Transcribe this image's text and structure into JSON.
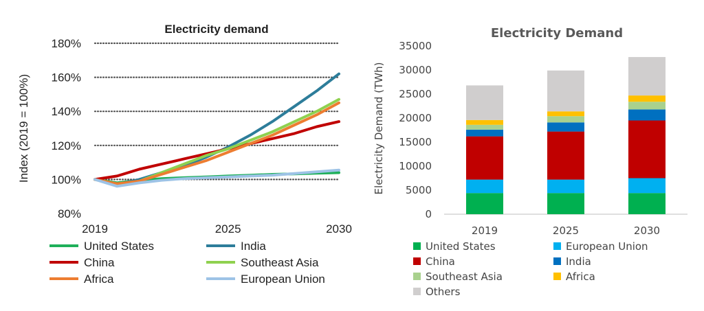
{
  "chart_data": [
    {
      "type": "line",
      "title": "Electricity demand",
      "xlabel": "",
      "ylabel": "Index (2019 = 100%)",
      "x": [
        2019,
        2020,
        2021,
        2022,
        2023,
        2024,
        2025,
        2026,
        2027,
        2028,
        2029,
        2030
      ],
      "x_ticks": [
        "2019",
        "2025",
        "2030"
      ],
      "y_ticks": [
        "80%",
        "100%",
        "120%",
        "140%",
        "160%",
        "180%"
      ],
      "ylim": [
        80,
        180
      ],
      "grid": "horizontal dotted",
      "legend": "bottom",
      "series": [
        {
          "name": "United States",
          "color": "#1fb05a",
          "values": [
            100,
            98,
            99.5,
            100.5,
            101,
            101.5,
            102,
            102.5,
            103,
            103.3,
            103.7,
            104
          ]
        },
        {
          "name": "India",
          "color": "#2d7d9a",
          "values": [
            100,
            97,
            100,
            104,
            108,
            113,
            119,
            126,
            134,
            143,
            152,
            162
          ]
        },
        {
          "name": "China",
          "color": "#c00000",
          "values": [
            100,
            102,
            106,
            109,
            112,
            115,
            118,
            121,
            124,
            127,
            131,
            134
          ]
        },
        {
          "name": "Southeast Asia",
          "color": "#8fd14f",
          "values": [
            100,
            97,
            99,
            104,
            109,
            114,
            118,
            123,
            128,
            134,
            140,
            147
          ]
        },
        {
          "name": "Africa",
          "color": "#ed7d31",
          "values": [
            100,
            97.5,
            99,
            103,
            107,
            111,
            116,
            121,
            126,
            132,
            138,
            145
          ]
        },
        {
          "name": "European Union",
          "color": "#9dc3e6",
          "values": [
            100,
            96,
            98,
            99.5,
            100.5,
            101,
            101.5,
            102,
            102.5,
            103.5,
            104.5,
            105.5
          ]
        }
      ]
    },
    {
      "type": "bar",
      "stacked": true,
      "title": "Electricity Demand",
      "xlabel": "",
      "ylabel": "Electricity Demand (TWh)",
      "categories": [
        "2019",
        "2025",
        "2030"
      ],
      "ylim": [
        0,
        35000
      ],
      "y_ticks": [
        "0",
        "5000",
        "10000",
        "15000",
        "20000",
        "25000",
        "30000",
        "35000"
      ],
      "legend": "bottom",
      "series": [
        {
          "name": "United States",
          "color": "#00b050",
          "values": [
            4400,
            4400,
            4400
          ]
        },
        {
          "name": "European Union",
          "color": "#00b0f0",
          "values": [
            2800,
            2800,
            3100
          ]
        },
        {
          "name": "China",
          "color": "#c00000",
          "values": [
            9000,
            10000,
            12000
          ]
        },
        {
          "name": "India",
          "color": "#0070c0",
          "values": [
            1400,
            1900,
            2300
          ]
        },
        {
          "name": "Southeast Asia",
          "color": "#a9d18e",
          "values": [
            1000,
            1300,
            1600
          ]
        },
        {
          "name": "Africa",
          "color": "#ffc000",
          "values": [
            1000,
            1000,
            1300
          ]
        },
        {
          "name": "Others",
          "color": "#d0cece",
          "values": [
            7200,
            8500,
            8000
          ]
        }
      ]
    }
  ]
}
